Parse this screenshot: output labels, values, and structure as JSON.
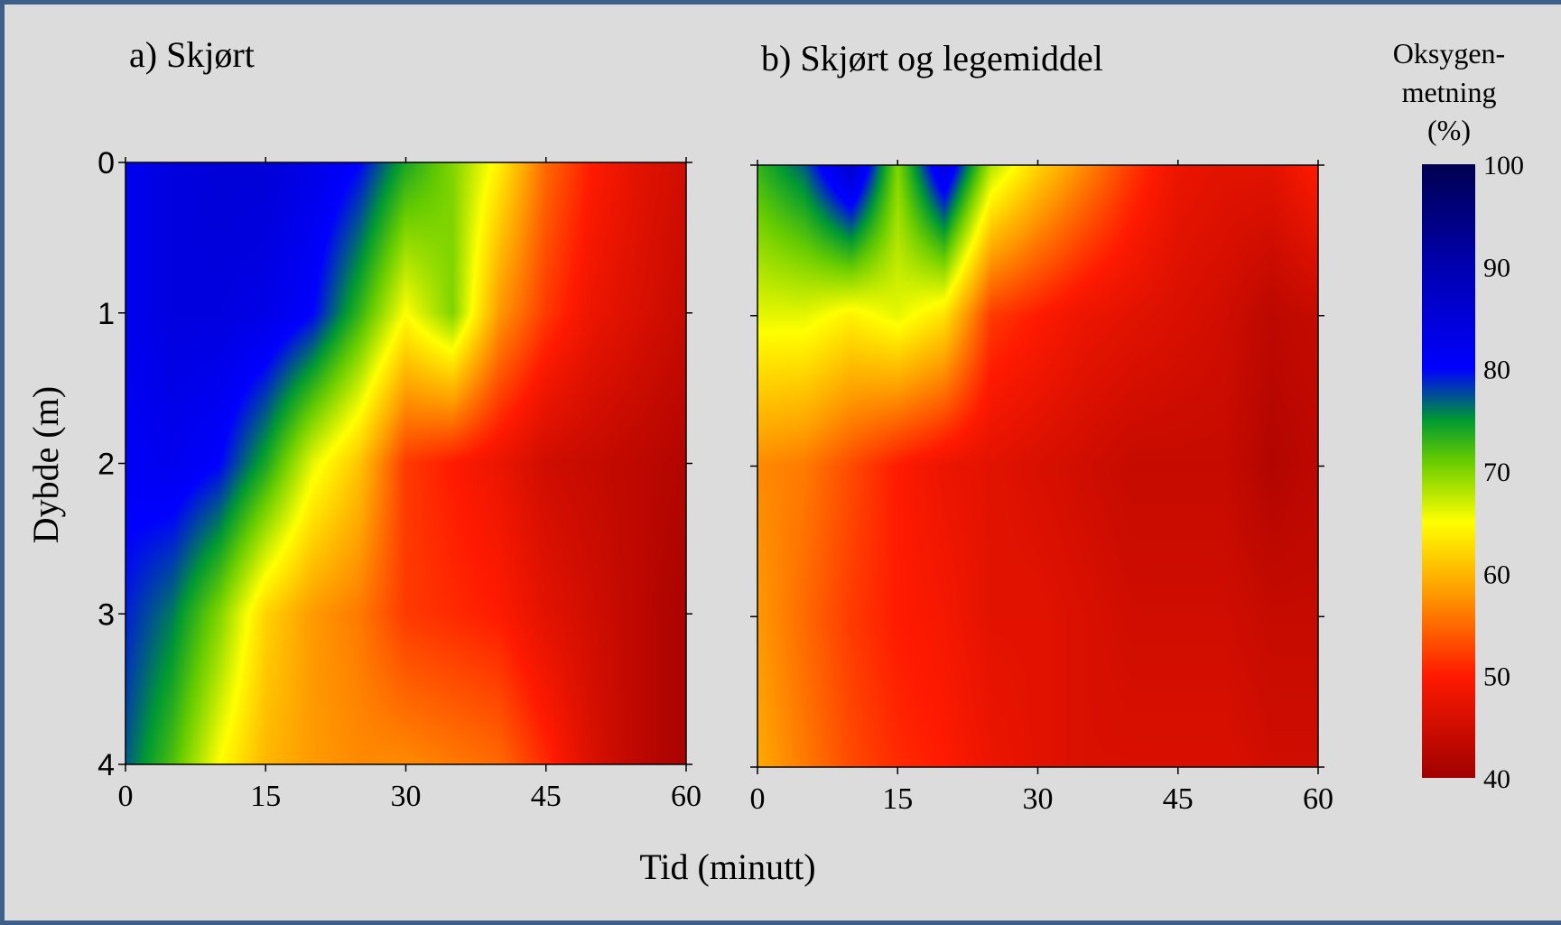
{
  "figure": {
    "xlabel": "Tid (minutt)",
    "ylabel": "Dybde (m)",
    "colorbar_title": [
      "Oksygen-",
      "metning",
      "(%)"
    ]
  },
  "colors": {
    "background": "#dcdcdc",
    "frame": "#3e5f8a"
  },
  "chart_data": [
    {
      "type": "heatmap",
      "title": "a) Skjørt",
      "xlabel": "Tid (minutt)",
      "ylabel": "Dybde (m)",
      "x": [
        0,
        5,
        10,
        15,
        20,
        25,
        30,
        35,
        40,
        45,
        50,
        55,
        60
      ],
      "y": [
        0,
        1,
        2,
        3,
        4
      ],
      "xlim": [
        0,
        60
      ],
      "ylim": [
        4,
        0
      ],
      "x_ticks": [
        "0",
        "15",
        "30",
        "45",
        "60"
      ],
      "y_ticks": [
        "0",
        "1",
        "2",
        "3",
        "4"
      ],
      "z": [
        [
          82,
          84,
          85,
          85,
          83,
          80,
          74,
          70,
          64,
          55,
          50,
          47,
          45
        ],
        [
          82,
          84,
          84,
          83,
          80,
          73,
          65,
          70,
          58,
          52,
          48,
          46,
          44
        ],
        [
          81,
          82,
          80,
          74,
          66,
          61,
          52,
          50,
          48,
          45,
          44,
          43,
          42
        ],
        [
          79,
          76,
          70,
          62,
          58,
          56,
          52,
          51,
          50,
          47,
          45,
          43,
          41
        ],
        [
          77,
          72,
          65,
          60,
          58,
          57,
          57,
          56,
          55,
          51,
          46,
          43,
          41
        ]
      ]
    },
    {
      "type": "heatmap",
      "title": "b) Skjørt og legemiddel",
      "xlabel": "Tid (minutt)",
      "ylabel": "Dybde (m)",
      "x": [
        0,
        5,
        10,
        15,
        20,
        25,
        30,
        35,
        40,
        45,
        50,
        55,
        60
      ],
      "y": [
        0,
        1,
        2,
        3,
        4
      ],
      "xlim": [
        0,
        60
      ],
      "ylim": [
        4,
        0
      ],
      "x_ticks": [
        "0",
        "15",
        "30",
        "45",
        "60"
      ],
      "y_ticks": [
        "0",
        "1",
        "2",
        "3",
        "4"
      ],
      "z": [
        [
          73,
          77,
          86,
          70,
          84,
          68,
          62,
          57,
          52,
          48,
          47,
          47,
          50
        ],
        [
          66,
          66,
          64,
          66,
          63,
          52,
          50,
          48,
          47,
          46,
          45,
          43,
          44
        ],
        [
          57,
          56,
          53,
          50,
          48,
          47,
          46,
          45,
          44,
          44,
          44,
          42,
          43
        ],
        [
          58,
          55,
          52,
          50,
          49,
          47,
          47,
          46,
          45,
          45,
          45,
          44,
          44
        ],
        [
          59,
          56,
          53,
          51,
          50,
          48,
          47,
          46,
          46,
          46,
          46,
          45,
          45
        ]
      ]
    }
  ],
  "colorbar": {
    "min": 40,
    "max": 100,
    "ticks": [
      "100",
      "90",
      "80",
      "70",
      "60",
      "50",
      "40"
    ],
    "stops": [
      {
        "v": 40,
        "c": "#a00000"
      },
      {
        "v": 50,
        "c": "#ff1a00"
      },
      {
        "v": 58,
        "c": "#ff9a00"
      },
      {
        "v": 65,
        "c": "#ffff00"
      },
      {
        "v": 71,
        "c": "#66cc00"
      },
      {
        "v": 75,
        "c": "#009933"
      },
      {
        "v": 80,
        "c": "#0000ff"
      },
      {
        "v": 90,
        "c": "#0000b0"
      },
      {
        "v": 100,
        "c": "#000050"
      }
    ]
  }
}
